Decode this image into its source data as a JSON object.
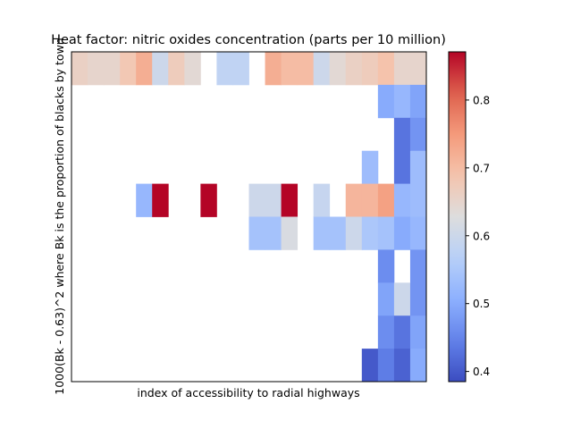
{
  "chart_data": {
    "type": "heatmap",
    "title": "Heat factor: nitric oxides concentration (parts per 10 million)",
    "xlabel": "index of accessibility to radial highways",
    "ylabel": "1000(Bk - 0.63)^2 where Bk is the proportion of blacks by town",
    "x_ticks_shown": false,
    "y_ticks_shown": false,
    "grid": false,
    "n_cols": 22,
    "n_rows": 10,
    "colormap": "coolwarm",
    "vmin": 0.385,
    "vmax": 0.871,
    "colorbar_ticks": [
      "0.4",
      "0.5",
      "0.6",
      "0.7",
      "0.8"
    ],
    "colorbar_tick_values": [
      0.4,
      0.5,
      0.6,
      0.7,
      0.8
    ],
    "values": [
      [
        0.66,
        0.65,
        0.65,
        0.68,
        0.72,
        0.6,
        0.67,
        0.64,
        null,
        0.58,
        0.58,
        null,
        0.72,
        0.7,
        0.7,
        0.6,
        0.64,
        0.66,
        0.67,
        0.69,
        0.65,
        0.65
      ],
      [
        null,
        null,
        null,
        null,
        null,
        null,
        null,
        null,
        null,
        null,
        null,
        null,
        null,
        null,
        null,
        null,
        null,
        null,
        null,
        0.5,
        0.52,
        0.49
      ],
      [
        null,
        null,
        null,
        null,
        null,
        null,
        null,
        null,
        null,
        null,
        null,
        null,
        null,
        null,
        null,
        null,
        null,
        null,
        null,
        null,
        0.43,
        0.47
      ],
      [
        null,
        null,
        null,
        null,
        null,
        null,
        null,
        null,
        null,
        null,
        null,
        null,
        null,
        null,
        null,
        null,
        null,
        null,
        0.53,
        null,
        0.43,
        0.53
      ],
      [
        null,
        null,
        null,
        null,
        0.52,
        0.871,
        null,
        null,
        0.871,
        null,
        null,
        0.6,
        0.6,
        0.871,
        null,
        0.59,
        null,
        0.71,
        0.71,
        0.74,
        0.52,
        0.53
      ],
      [
        null,
        null,
        null,
        null,
        null,
        null,
        null,
        null,
        null,
        null,
        null,
        0.54,
        0.54,
        0.62,
        null,
        0.54,
        0.54,
        0.6,
        0.55,
        0.54,
        0.5,
        0.52
      ],
      [
        null,
        null,
        null,
        null,
        null,
        null,
        null,
        null,
        null,
        null,
        null,
        null,
        null,
        null,
        null,
        null,
        null,
        null,
        null,
        0.46,
        null,
        0.47
      ],
      [
        null,
        null,
        null,
        null,
        null,
        null,
        null,
        null,
        null,
        null,
        null,
        null,
        null,
        null,
        null,
        null,
        null,
        null,
        null,
        0.49,
        0.6,
        0.47
      ],
      [
        null,
        null,
        null,
        null,
        null,
        null,
        null,
        null,
        null,
        null,
        null,
        null,
        null,
        null,
        null,
        null,
        null,
        null,
        null,
        0.46,
        0.43,
        0.49
      ],
      [
        null,
        null,
        null,
        null,
        null,
        null,
        null,
        null,
        null,
        null,
        null,
        null,
        null,
        null,
        null,
        null,
        null,
        null,
        0.4,
        0.44,
        0.41,
        0.5
      ]
    ]
  }
}
